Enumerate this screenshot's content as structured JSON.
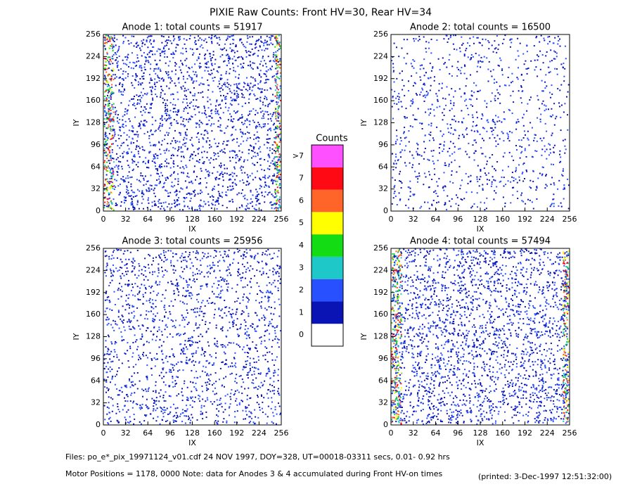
{
  "title": "PIXIE Raw Counts:  Front HV=30, Rear HV=34",
  "chart_data": [
    {
      "type": "heatmap",
      "title": "Anode 1: total counts = 51917",
      "x_label": "IX",
      "y_label": "IY",
      "xlim": [
        0,
        256
      ],
      "ylim": [
        0,
        256
      ],
      "xticks": [
        0,
        32,
        64,
        96,
        128,
        160,
        192,
        224,
        256
      ],
      "yticks": [
        0,
        32,
        64,
        96,
        128,
        160,
        192,
        224,
        256
      ]
    },
    {
      "type": "heatmap",
      "title": "Anode 2: total counts = 16500",
      "x_label": "IX",
      "y_label": "IY",
      "xlim": [
        0,
        256
      ],
      "ylim": [
        0,
        256
      ],
      "xticks": [
        0,
        32,
        64,
        96,
        128,
        160,
        192,
        224,
        256
      ],
      "yticks": [
        0,
        32,
        64,
        96,
        128,
        160,
        192,
        224,
        256
      ]
    },
    {
      "type": "heatmap",
      "title": "Anode 3: total counts = 25956",
      "x_label": "IX",
      "y_label": "IY",
      "xlim": [
        0,
        256
      ],
      "ylim": [
        0,
        256
      ],
      "xticks": [
        0,
        32,
        64,
        96,
        128,
        160,
        192,
        224,
        256
      ],
      "yticks": [
        0,
        32,
        64,
        96,
        128,
        160,
        192,
        224,
        256
      ]
    },
    {
      "type": "heatmap",
      "title": "Anode 4: total counts = 57494",
      "x_label": "IX",
      "y_label": "IY",
      "xlim": [
        0,
        256
      ],
      "ylim": [
        0,
        256
      ],
      "xticks": [
        0,
        32,
        64,
        96,
        128,
        160,
        192,
        224,
        256
      ],
      "yticks": [
        0,
        32,
        64,
        96,
        128,
        160,
        192,
        224,
        256
      ]
    }
  ],
  "colorbar": {
    "title": "Counts",
    "labels": [
      "0",
      "1",
      "2",
      "3",
      "4",
      "5",
      "6",
      "7",
      ">7"
    ],
    "colors": [
      "#ffffff",
      "#0a14b4",
      "#2850ff",
      "#1ec8c8",
      "#14dc14",
      "#ffff00",
      "#ff6428",
      "#ff0a14",
      "#ff50ff"
    ]
  },
  "footer": {
    "files": "Files: po_e*_pix_19971124_v01.cdf    24 NOV 1997, DOY=328, UT=00018-03311 secs,  0.01- 0.92 hrs",
    "motor": "Motor Positions = 1178, 0000   Note: data for Anodes 3 & 4 accumulated during Front HV-on times",
    "printed": "(printed:  3-Dec-1997 12:51:32:00)"
  }
}
